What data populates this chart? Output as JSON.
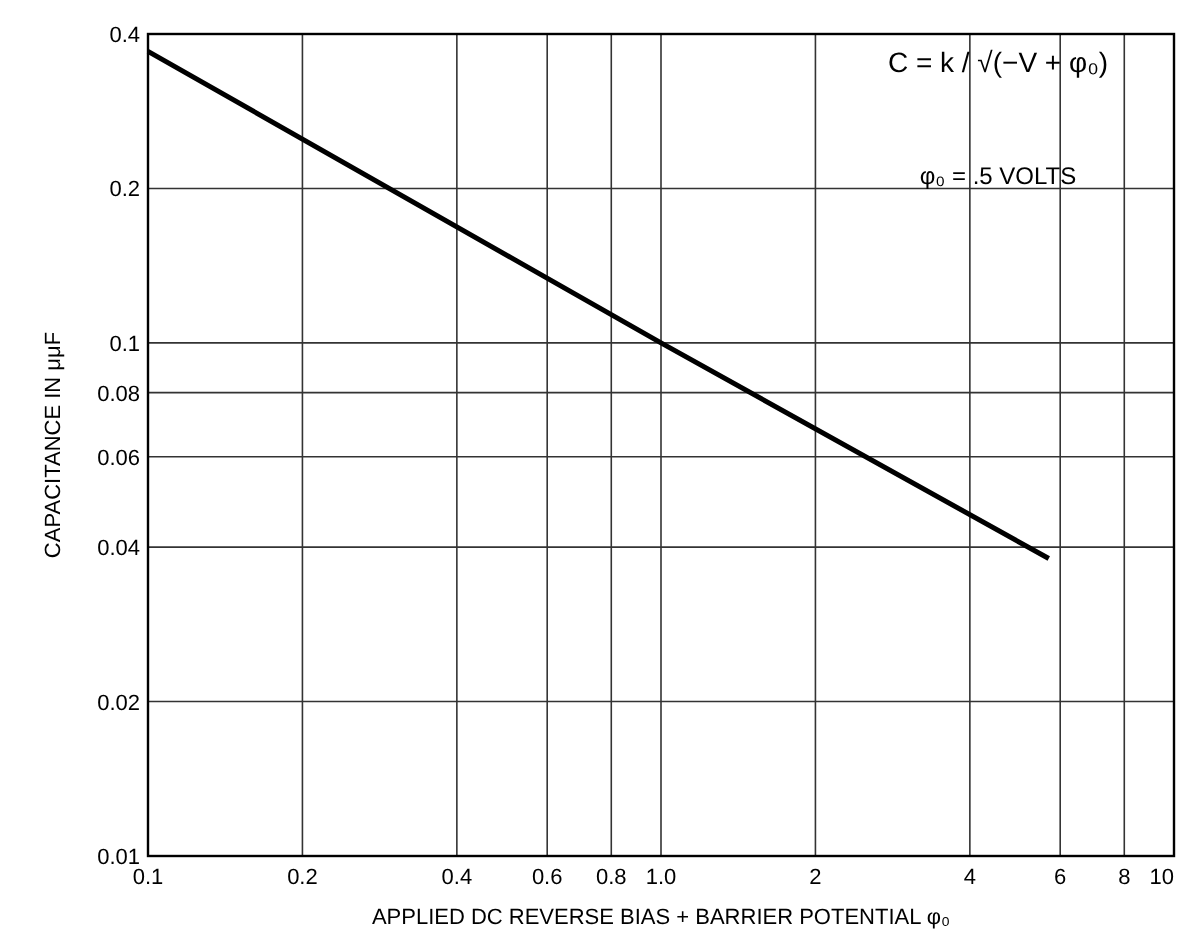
{
  "chart_data": {
    "type": "line",
    "xlabel": "APPLIED DC REVERSE BIAS + BARRIER POTENTIAL φ₀",
    "ylabel": "CAPACITANCE IN μμF",
    "log": "xy",
    "grid": true,
    "marker": "none",
    "line_style": "solid",
    "x": [
      0.1,
      1,
      5.7
    ],
    "series": [
      {
        "color": "#000000",
        "values": [
          0.37,
          0.1,
          0.038
        ]
      }
    ],
    "xlim": [
      0.1,
      10
    ],
    "xticks": [
      0.1,
      0.2,
      0.4,
      0.6,
      0.8,
      {
        "value": 1,
        "label": "1.0"
      },
      2,
      4,
      6,
      8,
      10
    ],
    "ylim": [
      0.01,
      0.4
    ],
    "yticks": [
      0.01,
      0.02,
      0.04,
      0.06,
      0.08,
      0.1,
      0.2,
      0.4
    ],
    "annotations": [
      "C = k / √(−V + φ₀)",
      "φ₀ = .5 VOLTS"
    ]
  }
}
